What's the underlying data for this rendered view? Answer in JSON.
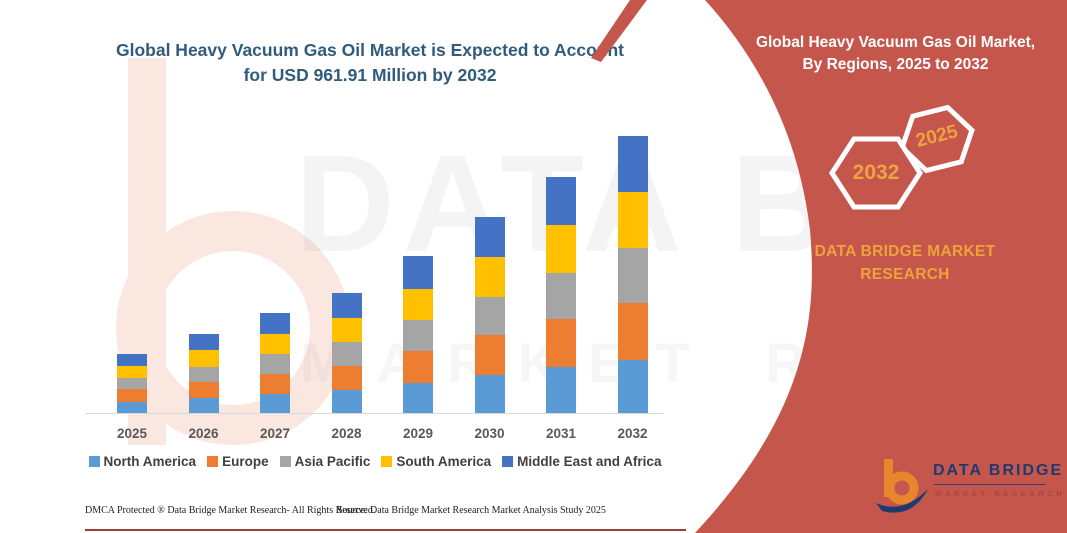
{
  "title": {
    "line1": "Global Heavy Vacuum Gas Oil Market is Expected to Account",
    "line2": "for USD 961.91 Million by 2032"
  },
  "panel": {
    "title_line1": "Global Heavy Vacuum Gas Oil Market,",
    "title_line2": "By Regions, 2025 to 2032",
    "hex_back_label": "2032",
    "hex_front_label": "2025",
    "brand_line1": "DATA BRIDGE MARKET",
    "brand_line2": "RESEARCH",
    "panel_red": "#c5564c",
    "accent_orange": "#eda33f"
  },
  "logo": {
    "name_text": "DATA BRIDGE",
    "sub_text": "MARKET RESEARCH"
  },
  "watermark": {
    "text_top": "DATA BRIDGE",
    "text_bottom": "MARKET RESEARCH"
  },
  "footer": {
    "left": "DMCA Protected ® Data Bridge Market Research-  All Rights Reserved.",
    "source": "Source: Data Bridge Market Research  Market Analysis Study 2025"
  },
  "chart_data": {
    "type": "bar",
    "stacked": true,
    "title": "Global Heavy Vacuum Gas Oil Market is Expected to Account for USD 961.91 Million by 2032",
    "unit": "USD Million",
    "categories": [
      "2025",
      "2026",
      "2027",
      "2028",
      "2029",
      "2030",
      "2031",
      "2032"
    ],
    "series": [
      {
        "name": "North America",
        "color": "#5B9BD5",
        "values": [
          40.5,
          54.0,
          68.0,
          82.0,
          107.0,
          134.0,
          161.0,
          188.0
        ]
      },
      {
        "name": "Europe",
        "color": "#ED7D31",
        "values": [
          45.0,
          57.0,
          71.0,
          85.0,
          111.0,
          139.0,
          167.0,
          197.5
        ]
      },
      {
        "name": "Asia Pacific",
        "color": "#A5A5A5",
        "values": [
          38.0,
          53.0,
          67.5,
          81.0,
          106.0,
          133.0,
          160.0,
          189.2
        ]
      },
      {
        "name": "South America",
        "color": "#FFC000",
        "values": [
          42.5,
          56.0,
          70.5,
          84.0,
          110.0,
          138.0,
          166.0,
          194.0
        ]
      },
      {
        "name": "Middle East and Africa",
        "color": "#4472C4",
        "values": [
          41.5,
          56.0,
          71.0,
          85.0,
          111.0,
          139.0,
          167.0,
          193.21
        ]
      }
    ],
    "totals": [
      207.5,
      276.0,
      348.0,
      417.0,
      545.0,
      683.0,
      821.0,
      961.91
    ],
    "highlight_total_2032": 961.91,
    "xlabel": "",
    "ylabel": "",
    "y_axis_visible": false,
    "grid": false,
    "legend_position": "bottom"
  }
}
